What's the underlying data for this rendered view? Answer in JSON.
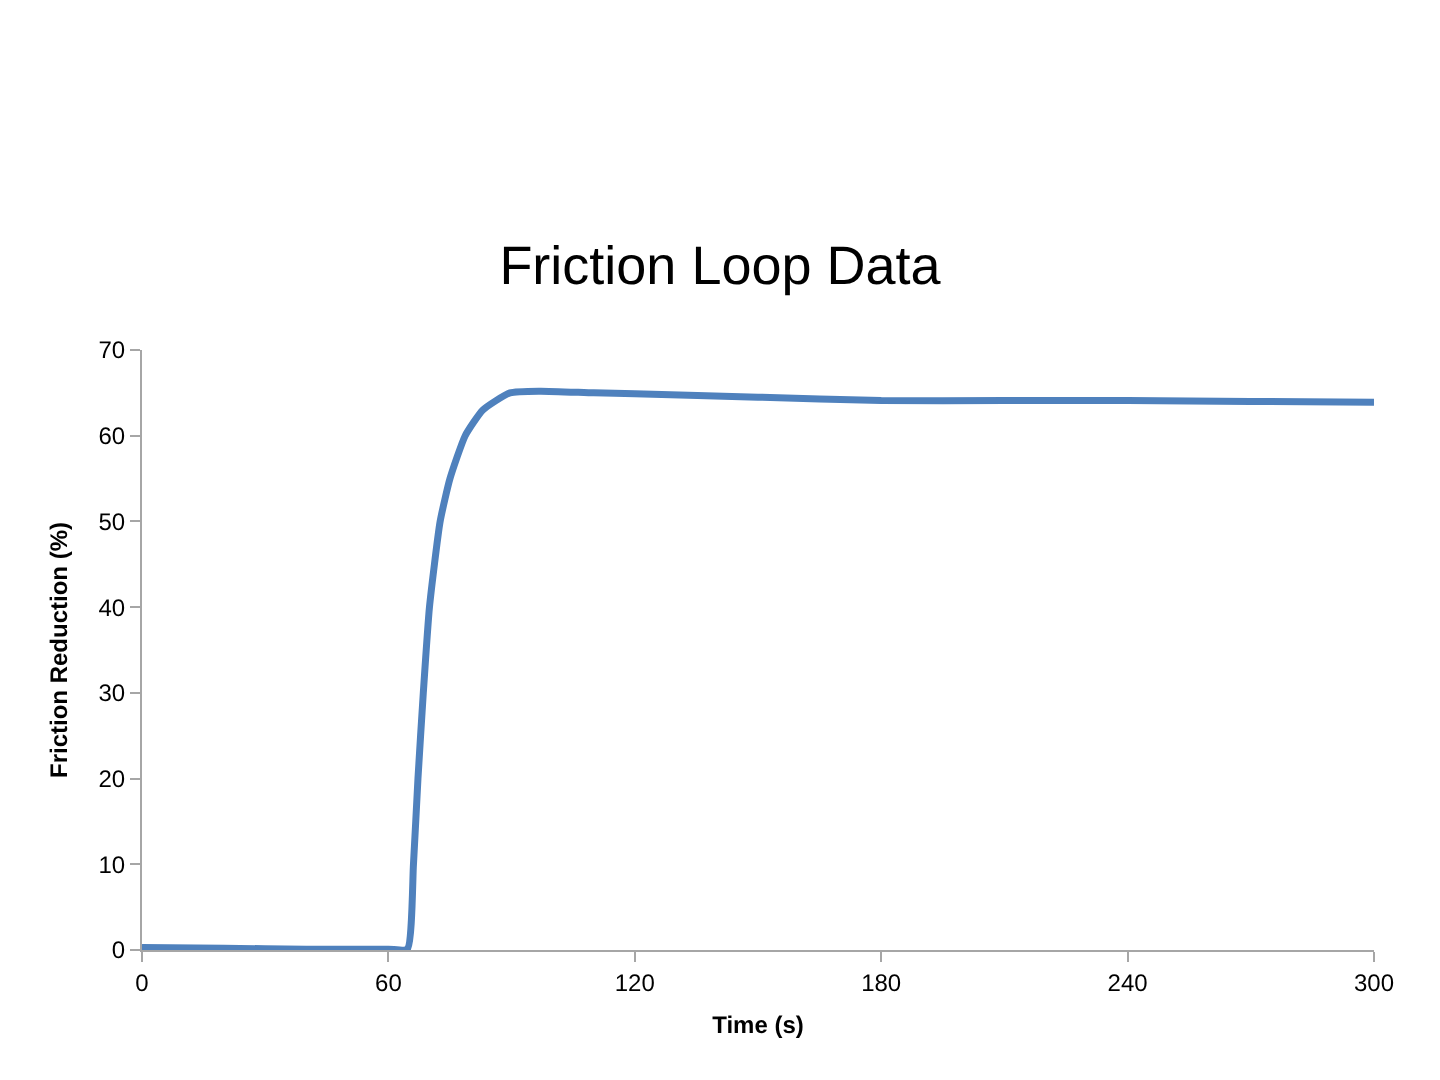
{
  "chart_data": {
    "type": "line",
    "title": "Friction Loop Data",
    "xlabel": "Time (s)",
    "ylabel": "Friction Reduction (%)",
    "xlim": [
      0,
      300
    ],
    "xticks": [
      0,
      60,
      120,
      180,
      240,
      300
    ],
    "ylim": [
      0,
      70
    ],
    "yticks": [
      0,
      10,
      20,
      30,
      40,
      50,
      60,
      70
    ],
    "grid": false,
    "marker": "none",
    "line_style": "solid",
    "series": [
      {
        "color": "#4f81bd",
        "x": [
          0,
          20,
          40,
          60,
          64.6,
          66.1,
          67.2,
          68.5,
          70,
          72.6,
          75,
          78.7,
          83,
          89.6,
          97,
          110,
          120,
          150,
          180,
          210,
          240,
          270,
          300
        ],
        "values": [
          0.3,
          0.2,
          0.1,
          0.1,
          0.1,
          10,
          20,
          30,
          40,
          50,
          55,
          60,
          63,
          65,
          65.2,
          65,
          64.9,
          64.5,
          64.1,
          64.1,
          64.1,
          64,
          63.9
        ]
      }
    ]
  }
}
